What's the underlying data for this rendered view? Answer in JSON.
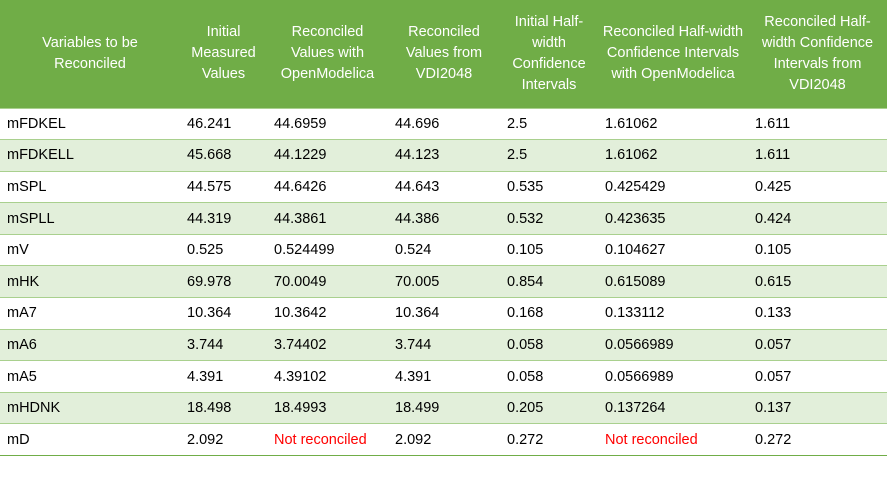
{
  "table": {
    "columns": [
      "Variables to be Reconciled",
      "Initial Measured Values",
      "Reconciled Values with OpenModelica",
      "Reconciled Values from VDI2048",
      "Initial Half-width Confidence Intervals",
      "Reconciled Half-width Confidence Intervals with OpenModelica",
      "Reconciled Half-width Confidence Intervals from VDI2048"
    ],
    "rows": [
      [
        "mFDKEL",
        "46.241",
        "44.6959",
        "44.696",
        "2.5",
        "1.61062",
        "1.611"
      ],
      [
        "mFDKELL",
        "45.668",
        "44.1229",
        "44.123",
        "2.5",
        "1.61062",
        "1.611"
      ],
      [
        "mSPL",
        "44.575",
        "44.6426",
        "44.643",
        "0.535",
        "0.425429",
        "0.425"
      ],
      [
        "mSPLL",
        "44.319",
        "44.3861",
        "44.386",
        "0.532",
        "0.423635",
        "0.424"
      ],
      [
        "mV",
        "0.525",
        "0.524499",
        "0.524",
        "0.105",
        "0.104627",
        "0.105"
      ],
      [
        "mHK",
        "69.978",
        "70.0049",
        "70.005",
        "0.854",
        "0.615089",
        "0.615"
      ],
      [
        "mA7",
        "10.364",
        "10.3642",
        "10.364",
        "0.168",
        "0.133112",
        "0.133"
      ],
      [
        "mA6",
        "3.744",
        "3.74402",
        "3.744",
        "0.058",
        "0.0566989",
        "0.057"
      ],
      [
        "mA5",
        "4.391",
        "4.39102",
        "4.391",
        "0.058",
        "0.0566989",
        "0.057"
      ],
      [
        "mHDNK",
        "18.498",
        "18.4993",
        "18.499",
        "0.205",
        "0.137264",
        "0.137"
      ],
      [
        "mD",
        "2.092",
        "Not reconciled",
        "2.092",
        "0.272",
        "Not reconciled",
        "0.272"
      ]
    ],
    "not_reconciled_color": "#ff0000"
  }
}
